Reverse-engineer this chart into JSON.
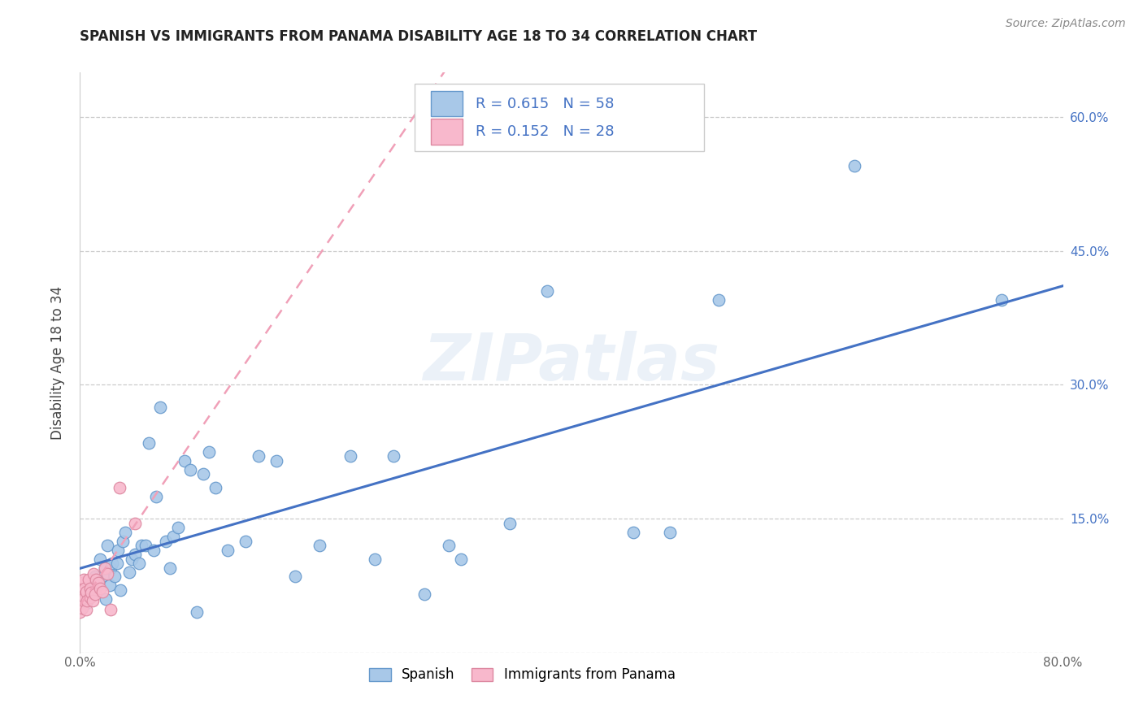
{
  "title": "SPANISH VS IMMIGRANTS FROM PANAMA DISABILITY AGE 18 TO 34 CORRELATION CHART",
  "source": "Source: ZipAtlas.com",
  "ylabel": "Disability Age 18 to 34",
  "xlim": [
    0.0,
    0.8
  ],
  "ylim": [
    0.0,
    0.65
  ],
  "xtick_vals": [
    0.0,
    0.1,
    0.2,
    0.3,
    0.4,
    0.5,
    0.6,
    0.7,
    0.8
  ],
  "xticklabels": [
    "0.0%",
    "",
    "",
    "",
    "",
    "",
    "",
    "",
    "80.0%"
  ],
  "ytick_vals": [
    0.0,
    0.15,
    0.3,
    0.45,
    0.6
  ],
  "yticklabels_right": [
    "",
    "15.0%",
    "30.0%",
    "45.0%",
    "60.0%"
  ],
  "legend1_label": "Spanish",
  "legend2_label": "Immigrants from Panama",
  "R1": "0.615",
  "N1": "58",
  "R2": "0.152",
  "N2": "28",
  "color_spanish_fill": "#a8c8e8",
  "color_spanish_edge": "#6699cc",
  "color_panama_fill": "#f8b8cc",
  "color_panama_edge": "#dd88a0",
  "color_line_spanish": "#4472c4",
  "color_line_panama": "#f0a0b8",
  "color_rn_text": "#4472c4",
  "watermark": "ZIPatlas",
  "bg_color": "#ffffff",
  "grid_color": "#cccccc",
  "title_color": "#222222",
  "ylabel_color": "#444444",
  "tick_color_right": "#4472c4",
  "tick_color_x": "#666666",
  "source_color": "#888888",
  "spanish_x": [
    0.005,
    0.008,
    0.01,
    0.012,
    0.015,
    0.016,
    0.018,
    0.02,
    0.021,
    0.022,
    0.024,
    0.025,
    0.026,
    0.028,
    0.03,
    0.031,
    0.033,
    0.035,
    0.037,
    0.04,
    0.042,
    0.045,
    0.048,
    0.05,
    0.053,
    0.056,
    0.06,
    0.062,
    0.065,
    0.07,
    0.073,
    0.076,
    0.08,
    0.085,
    0.09,
    0.095,
    0.1,
    0.105,
    0.11,
    0.12,
    0.135,
    0.145,
    0.16,
    0.175,
    0.195,
    0.22,
    0.24,
    0.255,
    0.28,
    0.3,
    0.31,
    0.35,
    0.38,
    0.45,
    0.48,
    0.52,
    0.63,
    0.75
  ],
  "spanish_y": [
    0.055,
    0.075,
    0.065,
    0.085,
    0.075,
    0.105,
    0.085,
    0.095,
    0.06,
    0.12,
    0.075,
    0.095,
    0.1,
    0.085,
    0.1,
    0.115,
    0.07,
    0.125,
    0.135,
    0.09,
    0.105,
    0.11,
    0.1,
    0.12,
    0.12,
    0.235,
    0.115,
    0.175,
    0.275,
    0.125,
    0.095,
    0.13,
    0.14,
    0.215,
    0.205,
    0.045,
    0.2,
    0.225,
    0.185,
    0.115,
    0.125,
    0.22,
    0.215,
    0.085,
    0.12,
    0.22,
    0.105,
    0.22,
    0.065,
    0.12,
    0.105,
    0.145,
    0.405,
    0.135,
    0.135,
    0.395,
    0.545,
    0.395
  ],
  "panama_x": [
    0.0,
    0.001,
    0.001,
    0.002,
    0.002,
    0.003,
    0.003,
    0.004,
    0.004,
    0.005,
    0.005,
    0.006,
    0.007,
    0.008,
    0.008,
    0.009,
    0.01,
    0.011,
    0.012,
    0.013,
    0.015,
    0.016,
    0.018,
    0.02,
    0.022,
    0.025,
    0.032,
    0.045
  ],
  "panama_y": [
    0.045,
    0.055,
    0.068,
    0.05,
    0.078,
    0.058,
    0.082,
    0.062,
    0.072,
    0.048,
    0.068,
    0.058,
    0.082,
    0.062,
    0.072,
    0.067,
    0.058,
    0.088,
    0.065,
    0.082,
    0.078,
    0.072,
    0.068,
    0.095,
    0.088,
    0.048,
    0.185,
    0.145
  ]
}
